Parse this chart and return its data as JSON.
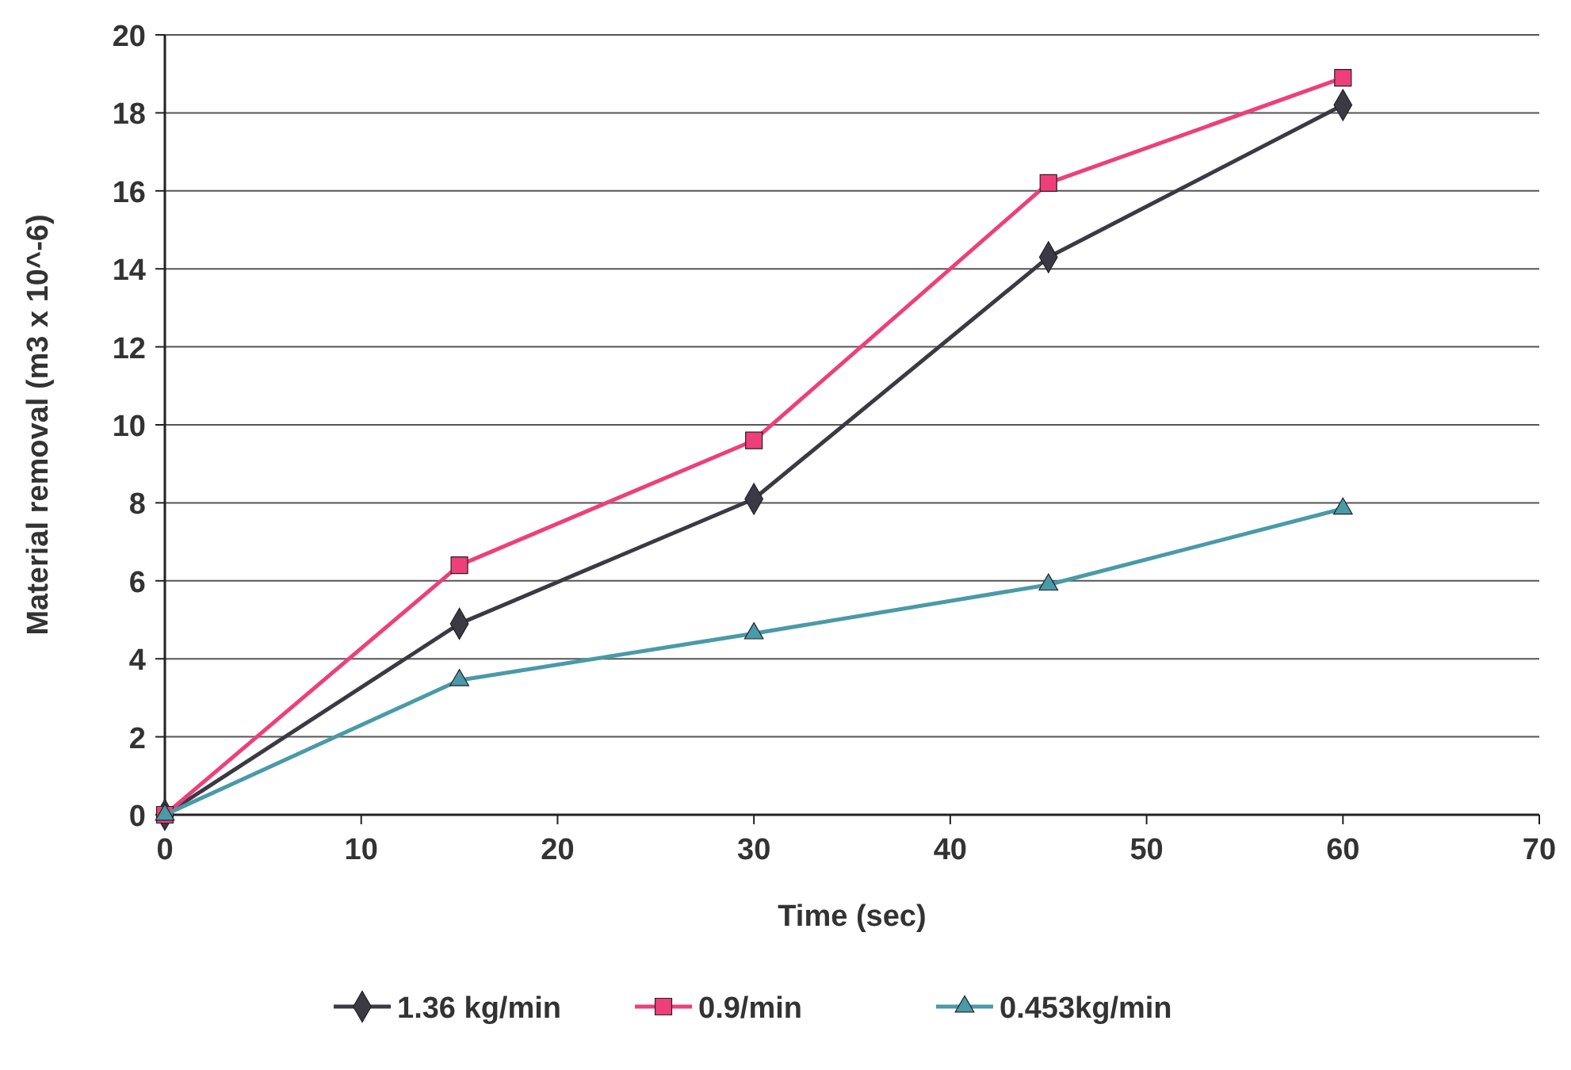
{
  "chart_data": {
    "type": "line",
    "xlabel": "Time (sec)",
    "ylabel": "Material removal (m3 x 10^-6)",
    "x": [
      0,
      15,
      30,
      45,
      60
    ],
    "series": [
      {
        "name": "1.36 kg/min",
        "color": "#3a3a44",
        "marker": "diamond",
        "values": [
          0,
          4.9,
          8.1,
          14.3,
          18.2
        ]
      },
      {
        "name": "0.9/min",
        "color": "#ee3f7a",
        "marker": "square",
        "values": [
          0,
          6.4,
          9.6,
          16.2,
          18.9
        ]
      },
      {
        "name": "0.453kg/min",
        "color": "#4a9aa8",
        "marker": "triangle",
        "values": [
          0,
          3.45,
          4.65,
          5.9,
          7.85
        ]
      }
    ],
    "xlim": [
      0,
      70
    ],
    "xticks": [
      0,
      10,
      20,
      30,
      40,
      50,
      60,
      70
    ],
    "ylim": [
      0,
      20
    ],
    "yticks": [
      0,
      2,
      4,
      6,
      8,
      10,
      12,
      14,
      16,
      18,
      20
    ],
    "grid": "y",
    "legend": "bottom",
    "line_style": "solid"
  }
}
